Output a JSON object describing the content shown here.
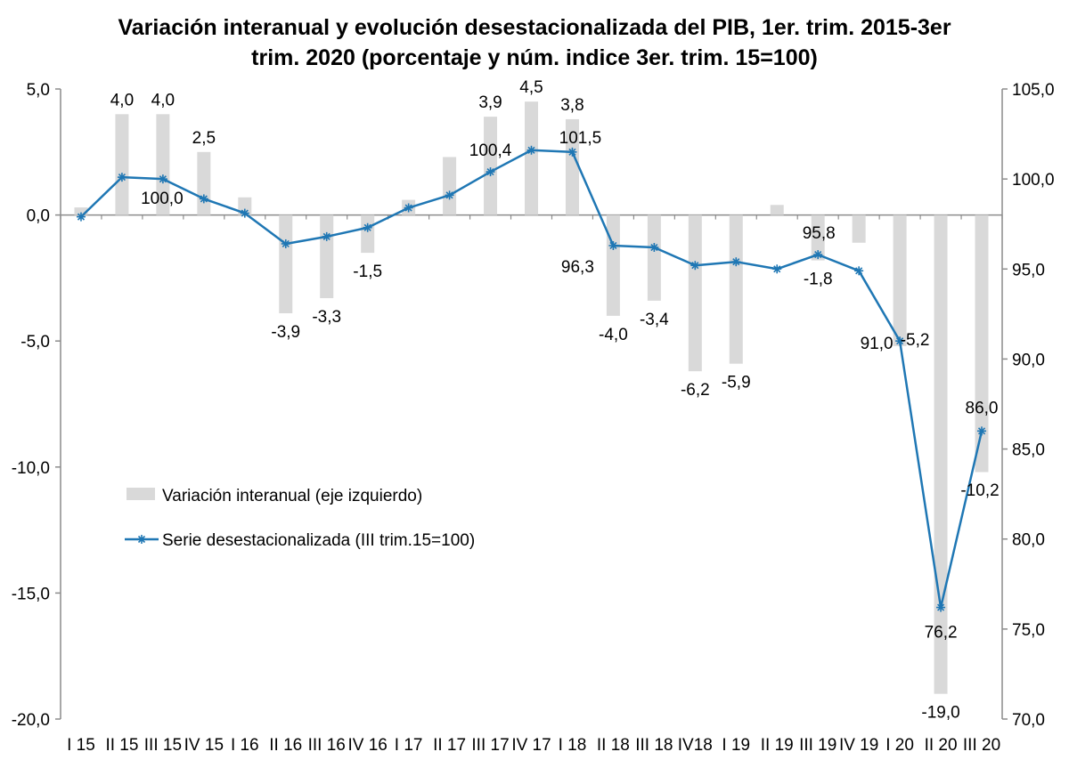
{
  "chart_data": {
    "type": "bar+line",
    "title_line1": "Variación interanual y evolución desestacionalizada del PIB, 1er. trim. 2015-3er",
    "title_line2": "trim. 2020 (porcentaje y núm. indice 3er. trim. 15=100)",
    "categories": [
      "I 15",
      "II 15",
      "III 15",
      "IV 15",
      "I 16",
      "II 16",
      "III 16",
      "IV 16",
      "I 17",
      "II 17",
      "III 17",
      "IV 17",
      "I 18",
      "II 18",
      "III 18",
      "IV18",
      "I 19",
      "II 19",
      "III 19",
      "IV 19",
      "I 20",
      "II 20",
      "III 20"
    ],
    "series": [
      {
        "name": "Variación interanual (eje izquierdo)",
        "axis": "left",
        "type": "bar",
        "color": "#d9d9d9",
        "values": [
          0.3,
          4.0,
          4.0,
          2.5,
          0.7,
          -3.9,
          -3.3,
          -1.5,
          0.6,
          2.3,
          3.9,
          4.5,
          3.8,
          -4.0,
          -3.4,
          -6.2,
          -5.9,
          0.4,
          -1.8,
          -1.1,
          -5.2,
          -19.0,
          -10.2
        ],
        "labels": [
          "",
          "4,0",
          "4,0",
          "2,5",
          "",
          "-3,9",
          "-3,3",
          "-1,5",
          "",
          "",
          "3,9",
          "4,5",
          "3,8",
          "-4,0",
          "-3,4",
          "-6,2",
          "-5,9",
          "",
          "-1,8",
          "",
          "-5,2",
          "-19,0",
          "-10,2"
        ]
      },
      {
        "name": "Serie desestacionalizada (III trim.15=100)",
        "axis": "right",
        "type": "line",
        "color": "#1f77b4",
        "marker": "asterisk",
        "values": [
          97.9,
          100.1,
          100.0,
          98.9,
          98.1,
          96.4,
          96.8,
          97.3,
          98.4,
          99.1,
          100.4,
          101.6,
          101.5,
          96.3,
          96.2,
          95.2,
          95.4,
          95.0,
          95.8,
          94.9,
          91.0,
          76.2,
          86.0
        ],
        "labels": [
          "",
          "",
          "100,0",
          "",
          "",
          "",
          "",
          "",
          "",
          "",
          "100,4",
          "",
          "101,5",
          "96,3",
          "",
          "",
          "",
          "",
          "95,8",
          "",
          "91,0",
          "76,2",
          "86,0"
        ]
      }
    ],
    "y_left": {
      "min": -20,
      "max": 5,
      "ticks": [
        "5,0",
        "0,0",
        "-5,0",
        "-10,0",
        "-15,0",
        "-20,0"
      ]
    },
    "y_right": {
      "min": 70,
      "max": 105,
      "ticks": [
        "105,0",
        "100,0",
        "95,0",
        "90,0",
        "85,0",
        "80,0",
        "75,0",
        "70,0"
      ]
    },
    "legend": {
      "placement": "left-middle",
      "bar_label": "Variación interanual (eje izquierdo)",
      "line_label": "Serie desestacionalizada (III trim.15=100)"
    },
    "grid": false
  }
}
